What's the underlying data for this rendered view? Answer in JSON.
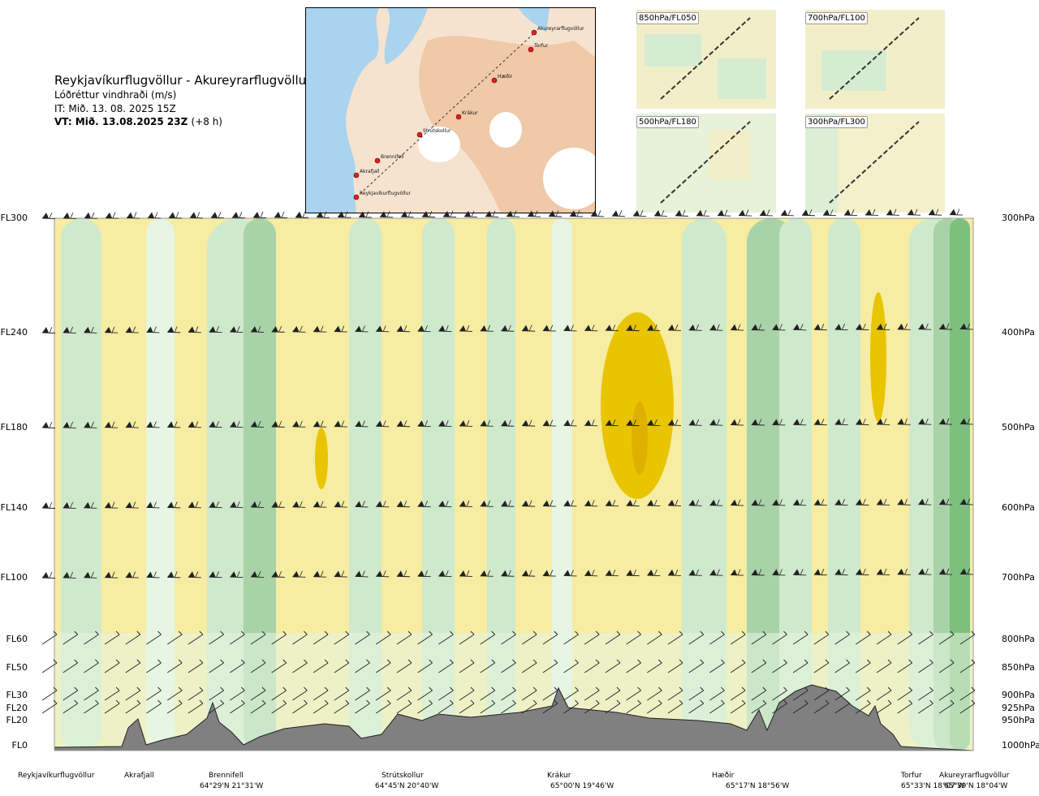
{
  "header": {
    "title": "Reykjavíkurflugvöllur - Akureyrarflugvöllur",
    "subtitle": "Lóðréttur vindhraði (m/s)",
    "issue_time": "IT: Mið. 13. 08. 2025 15Z",
    "valid_time": "VT: Mið. 13.08.2025 23Z",
    "valid_offset": "(+8 h)"
  },
  "map": {
    "points": [
      "Akureyrarflugvöllur",
      "Torfur",
      "Hæðir",
      "Krákur",
      "Strútskollur",
      "Brennifell",
      "Akrafjall",
      "Reykjavíkurflugvöllur"
    ]
  },
  "panels": [
    {
      "label": "850hPa/FL050"
    },
    {
      "label": "700hPa/FL100"
    },
    {
      "label": "500hPa/FL180"
    },
    {
      "label": "300hPa/FL300"
    }
  ],
  "axes": {
    "levels": [
      {
        "fl": "FL300",
        "hpa": "300hPa"
      },
      {
        "fl": "FL240",
        "hpa": "400hPa"
      },
      {
        "fl": "FL180",
        "hpa": "500hPa"
      },
      {
        "fl": "FL140",
        "hpa": "600hPa"
      },
      {
        "fl": "FL100",
        "hpa": "700hPa"
      },
      {
        "fl": "FL60",
        "hpa": "800hPa"
      },
      {
        "fl": "FL50",
        "hpa": "850hPa"
      },
      {
        "fl": "FL30",
        "hpa": "900hPa"
      },
      {
        "fl": "FL20",
        "hpa": "925hPa"
      },
      {
        "fl": "FL20",
        "hpa": "950hPa"
      },
      {
        "fl": "FL0",
        "hpa": "1000hPa"
      }
    ]
  },
  "waypoints": [
    {
      "name": "Reykjavíkurflugvöllur",
      "coord": ""
    },
    {
      "name": "Akrafjall",
      "coord": ""
    },
    {
      "name": "Brennifell",
      "coord": "64°29'N 21°31'W"
    },
    {
      "name": "Strútskollur",
      "coord": "64°45'N 20°40'W"
    },
    {
      "name": "Krákur",
      "coord": "65°00'N 19°46'W"
    },
    {
      "name": "Hæðir",
      "coord": "65°17'N 18°56'W"
    },
    {
      "name": "Torfur",
      "coord": "65°33'N 18°07'W"
    },
    {
      "name": "Akureyrarflugvöllur",
      "coord": "65°39'N 18°04'W"
    }
  ],
  "colors": {
    "strong_down": "#e8c500",
    "down": "#f6eca2",
    "weak_down": "#fbf5d2",
    "neutral": "#fdfdf0",
    "weak_up": "#e7f5e2",
    "up": "#cfe9cc",
    "strong_up": "#a8d3a8",
    "strongest_up": "#7ebf7e",
    "terrain": "#808080"
  },
  "chart_data": {
    "type": "heatmap",
    "title": "Reykjavíkurflugvöllur - Akureyrarflugvöllur",
    "subtitle": "Lóðréttur vindhraði (m/s)",
    "x_categories": [
      "Reykjavíkurflugvöllur",
      "Akrafjall",
      "Brennifell",
      "Strútskollur",
      "Krákur",
      "Hæðir",
      "Torfur",
      "Akureyrarflugvöllur"
    ],
    "y_levels_hpa": [
      300,
      400,
      500,
      600,
      700,
      800,
      850,
      900,
      925,
      950,
      1000
    ],
    "y_levels_fl": [
      "FL300",
      "FL240",
      "FL180",
      "FL140",
      "FL100",
      "FL60",
      "FL50",
      "FL30",
      "FL20",
      "FL20",
      "FL0"
    ],
    "grid": false
  }
}
